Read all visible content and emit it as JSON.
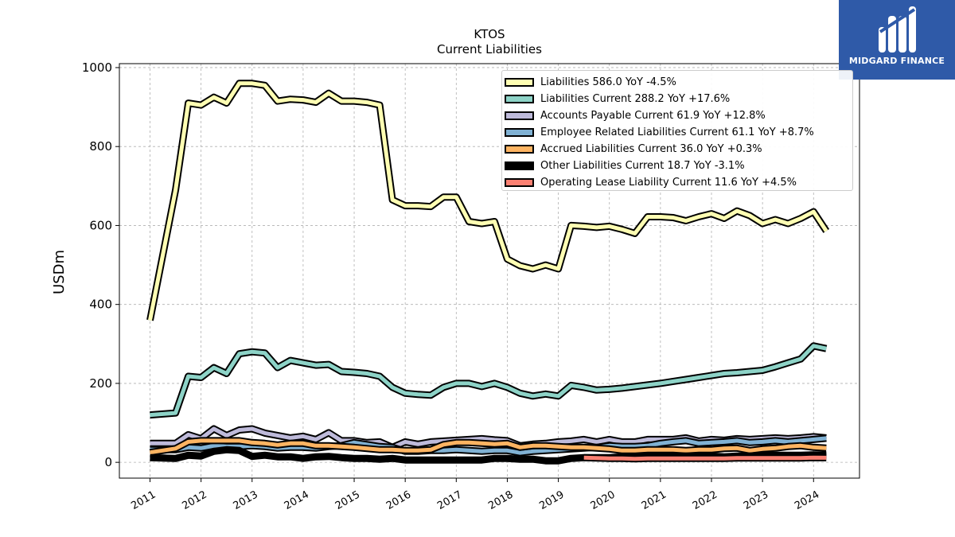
{
  "brand": {
    "name": "MIDGARD FINANCE",
    "bg_color": "#2f5aa8"
  },
  "chart_data": {
    "type": "line",
    "title": "KTOS",
    "subtitle": "Current  Liabilities",
    "ylabel": "USDm",
    "xlabel": "",
    "ylim": [
      -40,
      1010
    ],
    "xlim": [
      2010.4,
      2024.9
    ],
    "yticks": [
      0,
      200,
      400,
      600,
      800,
      1000
    ],
    "xticks": [
      2011,
      2012,
      2013,
      2014,
      2015,
      2016,
      2017,
      2018,
      2019,
      2020,
      2021,
      2022,
      2023,
      2024
    ],
    "grid": true,
    "legend_position": "top-right",
    "series": [
      {
        "name": "Liabilities  586.0 YoY -4.5%",
        "color": "#ffffb3",
        "x": [
          2011.0,
          2011.5,
          2011.75,
          2012.0,
          2012.25,
          2012.5,
          2012.75,
          2013.0,
          2013.25,
          2013.5,
          2013.75,
          2014.0,
          2014.25,
          2014.5,
          2014.75,
          2015.0,
          2015.25,
          2015.5,
          2015.75,
          2016.0,
          2016.25,
          2016.5,
          2016.75,
          2017.0,
          2017.25,
          2017.5,
          2017.75,
          2018.0,
          2018.25,
          2018.5,
          2018.75,
          2019.0,
          2019.25,
          2019.5,
          2019.75,
          2020.0,
          2020.25,
          2020.5,
          2020.75,
          2021.0,
          2021.25,
          2021.5,
          2021.75,
          2022.0,
          2022.25,
          2022.5,
          2022.75,
          2023.0,
          2023.25,
          2023.5,
          2023.75,
          2024.0,
          2024.25
        ],
        "values": [
          360,
          690,
          910,
          905,
          925,
          910,
          960,
          960,
          955,
          915,
          920,
          918,
          912,
          935,
          915,
          915,
          912,
          905,
          665,
          650,
          650,
          648,
          672,
          672,
          610,
          605,
          610,
          515,
          498,
          490,
          500,
          490,
          600,
          598,
          595,
          598,
          590,
          580,
          622,
          622,
          620,
          612,
          622,
          630,
          618,
          637,
          625,
          605,
          615,
          605,
          618,
          635,
          586
        ]
      },
      {
        "name": "Liabilities Current  288.2 YoY +17.6%",
        "color": "#8dd3c7",
        "x": [
          2011.0,
          2011.5,
          2011.75,
          2012.0,
          2012.25,
          2012.5,
          2012.75,
          2013.0,
          2013.25,
          2013.5,
          2013.75,
          2014.0,
          2014.25,
          2014.5,
          2014.75,
          2015.0,
          2015.25,
          2015.5,
          2015.75,
          2016.0,
          2016.25,
          2016.5,
          2016.75,
          2017.0,
          2017.25,
          2017.5,
          2017.75,
          2018.0,
          2018.25,
          2018.5,
          2018.75,
          2019.0,
          2019.25,
          2019.5,
          2019.75,
          2020.0,
          2020.25,
          2020.5,
          2020.75,
          2021.0,
          2021.25,
          2021.5,
          2021.75,
          2022.0,
          2022.25,
          2022.5,
          2022.75,
          2023.0,
          2023.25,
          2023.5,
          2023.75,
          2024.0,
          2024.25
        ],
        "values": [
          120,
          125,
          218,
          215,
          240,
          225,
          275,
          280,
          277,
          240,
          258,
          252,
          246,
          248,
          230,
          228,
          225,
          218,
          190,
          175,
          172,
          170,
          190,
          200,
          200,
          192,
          200,
          190,
          175,
          168,
          173,
          168,
          195,
          190,
          183,
          185,
          188,
          192,
          196,
          200,
          205,
          210,
          215,
          220,
          225,
          227,
          230,
          233,
          242,
          252,
          262,
          295,
          288
        ]
      },
      {
        "name": "Accounts Payable Current  61.9 YoY +12.8%",
        "color": "#bebada",
        "x": [
          2011.0,
          2011.5,
          2011.75,
          2012.0,
          2012.25,
          2012.5,
          2012.75,
          2013.0,
          2013.25,
          2013.5,
          2013.75,
          2014.0,
          2014.25,
          2014.5,
          2014.75,
          2015.0,
          2015.25,
          2015.5,
          2015.75,
          2016.0,
          2016.25,
          2016.5,
          2016.75,
          2017.0,
          2017.25,
          2017.5,
          2017.75,
          2018.0,
          2018.25,
          2018.5,
          2018.75,
          2019.0,
          2019.25,
          2019.5,
          2019.75,
          2020.0,
          2020.25,
          2020.5,
          2020.75,
          2021.0,
          2021.25,
          2021.5,
          2021.75,
          2022.0,
          2022.25,
          2022.5,
          2022.75,
          2023.0,
          2023.25,
          2023.5,
          2023.75,
          2024.0,
          2024.25
        ],
        "values": [
          48,
          48,
          70,
          60,
          85,
          68,
          82,
          85,
          74,
          68,
          62,
          66,
          58,
          75,
          55,
          55,
          50,
          52,
          38,
          52,
          46,
          52,
          54,
          56,
          58,
          60,
          57,
          55,
          42,
          46,
          48,
          52,
          54,
          58,
          52,
          58,
          52,
          52,
          58,
          58,
          58,
          62,
          54,
          58,
          56,
          60,
          58,
          60,
          62,
          60,
          62,
          65,
          62
        ]
      },
      {
        "name": "Employee Related Liabilities Current  61.1 YoY +8.7%",
        "color": "#80b1d3",
        "x": [
          2011.0,
          2011.5,
          2011.75,
          2012.0,
          2012.25,
          2012.5,
          2012.75,
          2013.0,
          2013.25,
          2013.5,
          2013.75,
          2014.0,
          2014.25,
          2014.5,
          2014.75,
          2015.0,
          2015.25,
          2015.5,
          2015.75,
          2016.0,
          2016.25,
          2016.5,
          2016.75,
          2017.0,
          2017.25,
          2017.5,
          2017.75,
          2018.0,
          2018.25,
          2018.5,
          2018.75,
          2019.0,
          2019.25,
          2019.5,
          2019.75,
          2020.0,
          2020.25,
          2020.5,
          2020.75,
          2021.0,
          2021.25,
          2021.5,
          2021.75,
          2022.0,
          2022.25,
          2022.5,
          2022.75,
          2023.0,
          2023.25,
          2023.5,
          2023.75,
          2024.0,
          2024.25
        ],
        "values": [
          32,
          32,
          38,
          36,
          42,
          40,
          40,
          42,
          40,
          36,
          38,
          38,
          36,
          40,
          42,
          50,
          45,
          40,
          38,
          28,
          28,
          30,
          30,
          32,
          30,
          28,
          30,
          30,
          24,
          28,
          30,
          32,
          34,
          36,
          38,
          42,
          40,
          40,
          42,
          48,
          52,
          55,
          48,
          50,
          52,
          55,
          50,
          52,
          55,
          52,
          55,
          58,
          61
        ]
      },
      {
        "name": "Accrued Liabilities Current  36.0 YoY +0.3%",
        "color": "#fdb462",
        "x": [
          2011.0,
          2011.5,
          2011.75,
          2012.0,
          2012.25,
          2012.5,
          2012.75,
          2013.0,
          2013.25,
          2013.5,
          2013.75,
          2014.0,
          2014.25,
          2014.5,
          2014.75,
          2015.0,
          2015.25,
          2015.5,
          2015.75,
          2016.0,
          2016.25,
          2016.5,
          2016.75,
          2017.0,
          2017.25,
          2017.5,
          2017.75,
          2018.0,
          2018.25,
          2018.5,
          2018.75,
          2019.0,
          2019.25,
          2019.5,
          2019.75,
          2020.0,
          2020.25,
          2020.5,
          2020.75,
          2021.0,
          2021.25,
          2021.5,
          2021.75,
          2022.0,
          2022.25,
          2022.5,
          2022.75,
          2023.0,
          2023.25,
          2023.5,
          2023.75,
          2024.0,
          2024.25
        ],
        "values": [
          25,
          35,
          52,
          55,
          55,
          55,
          55,
          50,
          48,
          44,
          48,
          48,
          42,
          42,
          40,
          38,
          35,
          32,
          32,
          30,
          30,
          32,
          45,
          50,
          50,
          48,
          46,
          48,
          38,
          42,
          42,
          40,
          38,
          38,
          36,
          34,
          30,
          30,
          32,
          32,
          32,
          30,
          32,
          32,
          35,
          36,
          30,
          34,
          36,
          40,
          42,
          38,
          36
        ]
      },
      {
        "name": "Other Liabilities Current  18.7 YoY -3.1%",
        "color": "#000000",
        "x": [
          2011.0,
          2011.5,
          2011.75,
          2012.0,
          2012.25,
          2012.5,
          2012.75,
          2013.0,
          2013.25,
          2013.5,
          2013.75,
          2014.0,
          2014.25,
          2014.5,
          2014.75,
          2015.0,
          2015.25,
          2015.5,
          2015.75,
          2016.0,
          2016.25,
          2016.5,
          2016.75,
          2017.0,
          2017.25,
          2017.5,
          2017.75,
          2018.0,
          2018.25,
          2018.5,
          2018.75,
          2019.0,
          2019.25,
          2019.5,
          2019.75,
          2020.0,
          2020.25,
          2020.5,
          2020.75,
          2021.0,
          2021.25,
          2021.5,
          2021.75,
          2022.0,
          2022.25,
          2022.5,
          2022.75,
          2023.0,
          2023.25,
          2023.5,
          2023.75,
          2024.0,
          2024.25
        ],
        "values": [
          12,
          10,
          18,
          16,
          28,
          32,
          30,
          15,
          18,
          14,
          14,
          10,
          14,
          15,
          12,
          10,
          10,
          8,
          10,
          6,
          6,
          6,
          6,
          6,
          6,
          6,
          10,
          10,
          8,
          8,
          4,
          4,
          10,
          12,
          12,
          12,
          14,
          14,
          16,
          16,
          15,
          16,
          15,
          16,
          14,
          16,
          16,
          18,
          18,
          18,
          18,
          19,
          18.7
        ]
      },
      {
        "name": "Operating Lease Liability Current  11.6 YoY +4.5%",
        "color": "#fb8072",
        "x": [
          2019.5,
          2019.75,
          2020.0,
          2020.25,
          2020.5,
          2020.75,
          2021.0,
          2021.25,
          2021.5,
          2021.75,
          2022.0,
          2022.25,
          2022.5,
          2022.75,
          2023.0,
          2023.25,
          2023.5,
          2023.75,
          2024.0,
          2024.25
        ],
        "values": [
          12,
          11,
          10,
          10,
          9,
          10,
          10,
          10,
          10,
          10,
          10,
          10,
          11,
          11,
          11,
          11,
          11,
          11,
          12,
          11.6
        ]
      }
    ]
  }
}
